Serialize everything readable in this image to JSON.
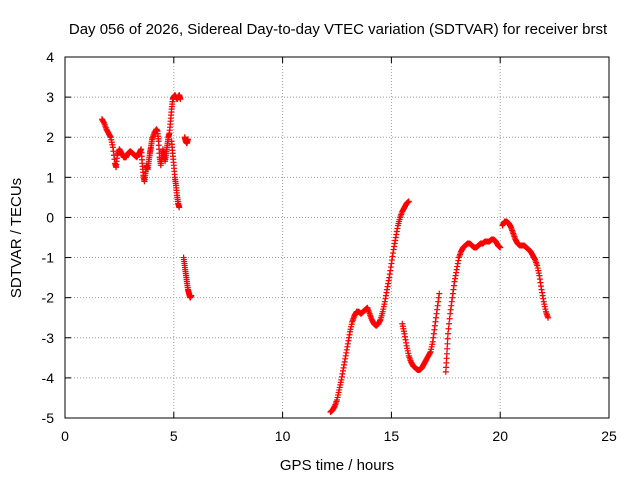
{
  "chart_data": {
    "type": "scatter",
    "title": "Day 056 of 2026, Sidereal Day-to-day VTEC variation (SDTVAR) for receiver brst",
    "xlabel": "GPS time / hours",
    "ylabel": "SDTVAR / TECUs",
    "xlim": [
      0,
      25
    ],
    "ylim": [
      -5,
      4
    ],
    "x_ticks": [
      "0",
      "5",
      "10",
      "15",
      "20",
      "25"
    ],
    "y_ticks": [
      "-5",
      "-4",
      "-3",
      "-2",
      "-1",
      "0",
      "1",
      "2",
      "3",
      "4"
    ],
    "grid": true,
    "legend": "none",
    "marker": "plus",
    "series_color": "#ff0000",
    "series": [
      {
        "segments": [
          [
            [
              1.7,
              2.45
            ],
            [
              1.8,
              2.35
            ],
            [
              1.9,
              2.2
            ],
            [
              2.0,
              2.1
            ],
            [
              2.1,
              2.0
            ],
            [
              2.2,
              1.75
            ],
            [
              2.3,
              1.35
            ],
            [
              2.35,
              1.25
            ],
            [
              2.4,
              1.55
            ],
            [
              2.5,
              1.7
            ],
            [
              2.6,
              1.6
            ],
            [
              2.7,
              1.5
            ],
            [
              2.8,
              1.5
            ],
            [
              2.9,
              1.6
            ],
            [
              3.0,
              1.65
            ],
            [
              3.1,
              1.6
            ],
            [
              3.2,
              1.55
            ],
            [
              3.3,
              1.5
            ],
            [
              3.4,
              1.6
            ],
            [
              3.5,
              1.7
            ],
            [
              3.55,
              1.35
            ],
            [
              3.6,
              1.05
            ],
            [
              3.65,
              0.9
            ],
            [
              3.7,
              1.1
            ],
            [
              3.75,
              1.3
            ],
            [
              3.8,
              1.2
            ],
            [
              3.85,
              1.4
            ],
            [
              3.9,
              1.6
            ],
            [
              3.95,
              1.75
            ],
            [
              4.0,
              1.95
            ],
            [
              4.1,
              2.1
            ],
            [
              4.2,
              2.2
            ],
            [
              4.25,
              2.15
            ],
            [
              4.3,
              1.9
            ],
            [
              4.35,
              1.5
            ],
            [
              4.4,
              1.3
            ],
            [
              4.45,
              1.5
            ],
            [
              4.5,
              1.7
            ],
            [
              4.55,
              1.55
            ],
            [
              4.6,
              1.4
            ],
            [
              4.65,
              1.6
            ],
            [
              4.7,
              1.8
            ],
            [
              4.75,
              2.0
            ],
            [
              4.8,
              2.1
            ],
            [
              4.85,
              2.4
            ],
            [
              4.9,
              2.7
            ],
            [
              4.95,
              2.95
            ],
            [
              5.0,
              3.0
            ],
            [
              5.05,
              3.05
            ],
            [
              5.1,
              3.0
            ],
            [
              5.15,
              2.95
            ],
            [
              5.2,
              3.0
            ],
            [
              5.25,
              3.05
            ],
            [
              5.3,
              2.95
            ]
          ],
          [
            [
              4.9,
              1.9
            ],
            [
              4.95,
              1.6
            ],
            [
              5.0,
              1.3
            ],
            [
              5.05,
              1.0
            ],
            [
              5.1,
              0.8
            ],
            [
              5.15,
              0.55
            ],
            [
              5.2,
              0.35
            ],
            [
              5.25,
              0.25
            ]
          ],
          [
            [
              5.5,
              2.0
            ],
            [
              5.55,
              1.9
            ],
            [
              5.6,
              1.85
            ],
            [
              5.65,
              1.95
            ]
          ],
          [
            [
              5.45,
              -1.0
            ],
            [
              5.5,
              -1.2
            ],
            [
              5.55,
              -1.4
            ],
            [
              5.6,
              -1.6
            ],
            [
              5.65,
              -1.8
            ],
            [
              5.7,
              -1.9
            ],
            [
              5.75,
              -2.0
            ],
            [
              5.8,
              -1.95
            ]
          ],
          [
            [
              12.2,
              -4.85
            ],
            [
              12.3,
              -4.8
            ],
            [
              12.4,
              -4.7
            ],
            [
              12.5,
              -4.55
            ],
            [
              12.6,
              -4.3
            ],
            [
              12.7,
              -4.05
            ],
            [
              12.8,
              -3.75
            ],
            [
              12.9,
              -3.45
            ],
            [
              13.0,
              -3.15
            ],
            [
              13.1,
              -2.85
            ],
            [
              13.2,
              -2.6
            ],
            [
              13.3,
              -2.45
            ],
            [
              13.4,
              -2.35
            ],
            [
              13.5,
              -2.35
            ],
            [
              13.6,
              -2.4
            ],
            [
              13.7,
              -2.35
            ],
            [
              13.8,
              -2.3
            ],
            [
              13.9,
              -2.25
            ],
            [
              14.0,
              -2.4
            ],
            [
              14.1,
              -2.55
            ],
            [
              14.2,
              -2.65
            ],
            [
              14.3,
              -2.7
            ],
            [
              14.4,
              -2.65
            ],
            [
              14.5,
              -2.55
            ],
            [
              14.6,
              -2.35
            ],
            [
              14.7,
              -2.1
            ],
            [
              14.8,
              -1.8
            ],
            [
              14.9,
              -1.5
            ],
            [
              15.0,
              -1.15
            ],
            [
              15.1,
              -0.8
            ],
            [
              15.2,
              -0.5
            ],
            [
              15.3,
              -0.2
            ],
            [
              15.4,
              0.0
            ],
            [
              15.5,
              0.15
            ],
            [
              15.6,
              0.25
            ],
            [
              15.7,
              0.35
            ],
            [
              15.8,
              0.4
            ]
          ],
          [
            [
              15.5,
              -2.65
            ],
            [
              15.6,
              -2.9
            ],
            [
              15.7,
              -3.2
            ],
            [
              15.8,
              -3.45
            ],
            [
              15.9,
              -3.6
            ],
            [
              16.0,
              -3.7
            ],
            [
              16.1,
              -3.75
            ],
            [
              16.2,
              -3.8
            ],
            [
              16.3,
              -3.8
            ],
            [
              16.4,
              -3.75
            ],
            [
              16.5,
              -3.65
            ],
            [
              16.6,
              -3.55
            ],
            [
              16.7,
              -3.45
            ],
            [
              16.8,
              -3.35
            ],
            [
              16.9,
              -3.1
            ],
            [
              17.0,
              -2.7
            ],
            [
              17.1,
              -2.3
            ],
            [
              17.2,
              -1.9
            ]
          ],
          [
            [
              17.5,
              -3.85
            ],
            [
              17.55,
              -3.4
            ],
            [
              17.6,
              -2.9
            ],
            [
              17.7,
              -2.4
            ],
            [
              17.8,
              -2.0
            ],
            [
              17.9,
              -1.6
            ],
            [
              18.0,
              -1.3
            ],
            [
              18.1,
              -1.0
            ],
            [
              18.2,
              -0.85
            ],
            [
              18.3,
              -0.75
            ],
            [
              18.4,
              -0.7
            ],
            [
              18.5,
              -0.65
            ],
            [
              18.6,
              -0.65
            ],
            [
              18.7,
              -0.7
            ],
            [
              18.8,
              -0.75
            ],
            [
              18.9,
              -0.75
            ],
            [
              19.0,
              -0.7
            ],
            [
              19.1,
              -0.65
            ],
            [
              19.2,
              -0.65
            ],
            [
              19.3,
              -0.6
            ],
            [
              19.4,
              -0.6
            ],
            [
              19.5,
              -0.6
            ],
            [
              19.6,
              -0.55
            ],
            [
              19.7,
              -0.55
            ],
            [
              19.8,
              -0.6
            ],
            [
              19.9,
              -0.7
            ],
            [
              20.0,
              -0.75
            ]
          ],
          [
            [
              20.1,
              -0.2
            ],
            [
              20.2,
              -0.1
            ],
            [
              20.3,
              -0.1
            ],
            [
              20.4,
              -0.15
            ],
            [
              20.5,
              -0.25
            ],
            [
              20.6,
              -0.4
            ],
            [
              20.7,
              -0.55
            ],
            [
              20.8,
              -0.65
            ],
            [
              20.9,
              -0.7
            ],
            [
              21.0,
              -0.7
            ],
            [
              21.1,
              -0.7
            ],
            [
              21.2,
              -0.75
            ],
            [
              21.3,
              -0.8
            ],
            [
              21.4,
              -0.85
            ],
            [
              21.5,
              -0.95
            ],
            [
              21.6,
              -1.05
            ],
            [
              21.7,
              -1.2
            ],
            [
              21.8,
              -1.45
            ],
            [
              21.9,
              -1.8
            ],
            [
              22.0,
              -2.1
            ],
            [
              22.1,
              -2.35
            ],
            [
              22.2,
              -2.5
            ]
          ]
        ]
      }
    ]
  }
}
